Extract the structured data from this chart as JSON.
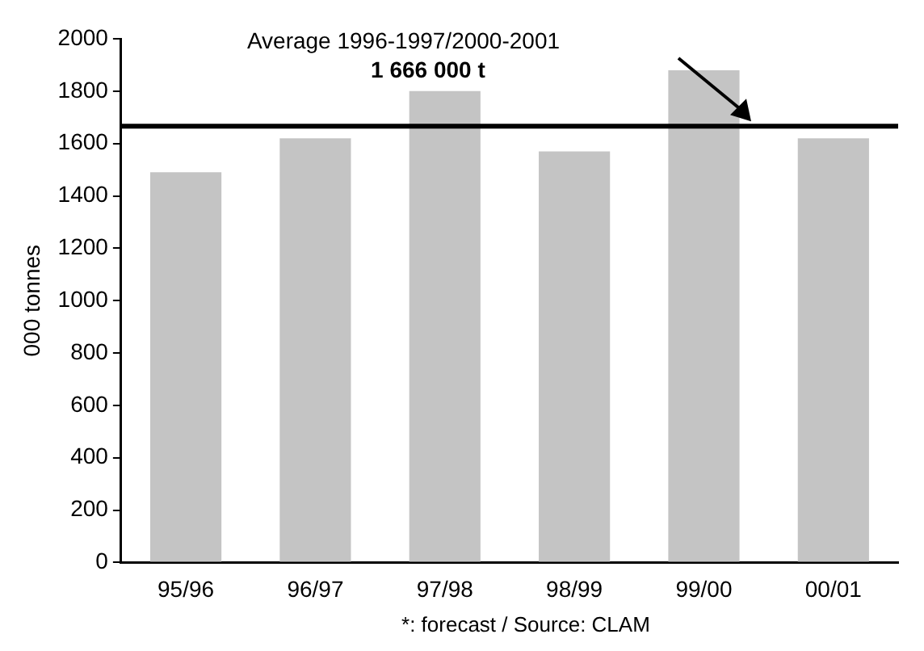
{
  "chart_data": {
    "type": "bar",
    "ylabel": "000 tonnes",
    "categories": [
      "95/96",
      "96/97",
      "97/98",
      "98/99",
      "99/00",
      "00/01"
    ],
    "values": [
      1490,
      1620,
      1800,
      1570,
      1880,
      1620
    ],
    "color": "#c4c4c4",
    "ylim": [
      0,
      2000
    ],
    "yticks": [
      0,
      200,
      400,
      600,
      800,
      1000,
      1200,
      1400,
      1600,
      1800,
      2000
    ],
    "grid": false,
    "legend": false,
    "ref_lines": [
      {
        "axis": "y",
        "value": 1666,
        "label": "Average 1996-1997/2000-2001",
        "color": "#000000"
      }
    ],
    "annotations": [
      {
        "text": "1 666 000 t",
        "y": 1666
      },
      "*: forecast / Source: CLAM"
    ]
  }
}
